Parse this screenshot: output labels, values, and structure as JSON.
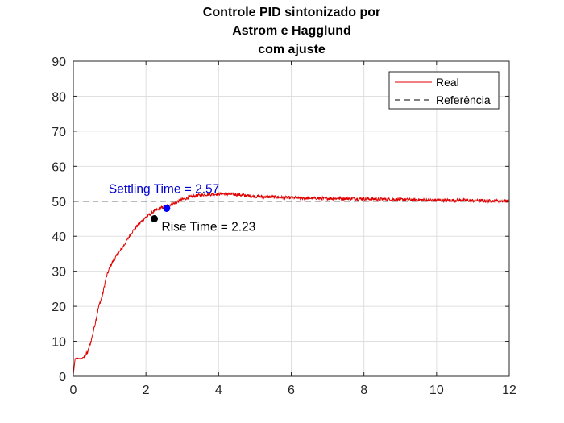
{
  "chart_data": {
    "type": "line",
    "title_lines": [
      "Controle PID sintonizado por",
      "Astrom e Hagglund",
      "com ajuste"
    ],
    "xlabel": "",
    "ylabel": "",
    "xlim": [
      0,
      12
    ],
    "ylim": [
      0,
      90
    ],
    "xticks": [
      0,
      2,
      4,
      6,
      8,
      10,
      12
    ],
    "yticks": [
      0,
      10,
      20,
      30,
      40,
      50,
      60,
      70,
      80,
      90
    ],
    "grid": true,
    "legend": {
      "placement": "top-right",
      "entries": [
        "Real",
        "Referência"
      ]
    },
    "series": [
      {
        "name": "Real",
        "color": "#e00000",
        "style": "solid",
        "noisy": true,
        "x": [
          0,
          0.05,
          0.1,
          0.2,
          0.3,
          0.4,
          0.5,
          0.6,
          0.7,
          0.8,
          0.9,
          1.0,
          1.1,
          1.2,
          1.4,
          1.6,
          1.8,
          2.0,
          2.2,
          2.4,
          2.6,
          2.8,
          3.0,
          3.2,
          3.4,
          3.6,
          3.8,
          4.0,
          4.2,
          4.4,
          4.6,
          4.8,
          5.0,
          5.5,
          6.0,
          6.5,
          7.0,
          7.5,
          8.0,
          8.5,
          9.0,
          9.5,
          10.0,
          10.5,
          11.0,
          11.5,
          12.0
        ],
        "y": [
          0.5,
          5,
          5.2,
          5,
          5.5,
          7,
          10.5,
          15,
          20,
          23,
          28,
          31,
          33,
          34.5,
          37.5,
          41,
          43.5,
          45.5,
          47,
          48,
          48.8,
          49.5,
          50.5,
          51.2,
          51.6,
          51.9,
          52,
          52.1,
          52.1,
          52,
          51.8,
          51.6,
          51.4,
          51.2,
          51,
          50.9,
          50.8,
          50.8,
          50.7,
          50.6,
          50.5,
          50.4,
          50.3,
          50.3,
          50.2,
          50.1,
          50.1
        ]
      },
      {
        "name": "Referência",
        "color": "#000000",
        "style": "dashed",
        "x": [
          0,
          12
        ],
        "y": [
          50,
          50
        ]
      }
    ],
    "markers": [
      {
        "x": 2.57,
        "y": 48,
        "color": "#0000ff",
        "label": "Settling Time = 2.57",
        "label_color": "#0000cc"
      },
      {
        "x": 2.23,
        "y": 45,
        "color": "#000000",
        "label": "Rise Time = 2.23",
        "label_color": "#000000"
      }
    ]
  }
}
